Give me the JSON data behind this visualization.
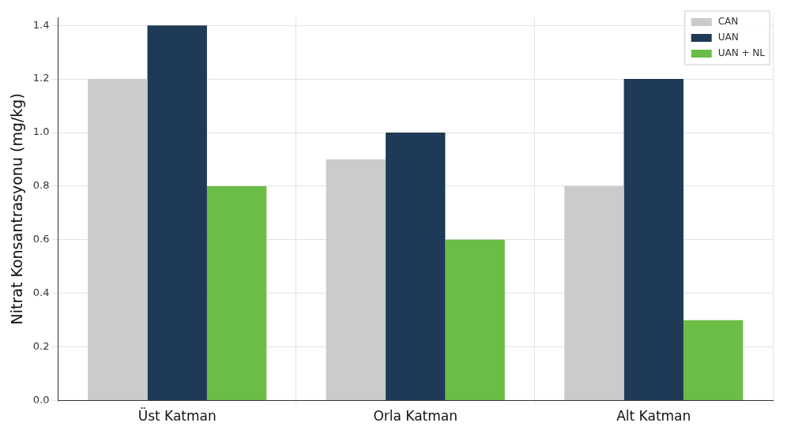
{
  "chart_data": {
    "type": "bar",
    "ylabel": "Nitrat Konsantrasyonu (mg/kg)",
    "categories": [
      "Üst Katman",
      "Orla Katman",
      "Alt Katman"
    ],
    "series": [
      {
        "name": "CAN",
        "color": "#cbcbcb",
        "values": [
          1.2,
          0.9,
          0.8
        ]
      },
      {
        "name": "UAN",
        "color": "#1f3a56",
        "values": [
          1.4,
          1.0,
          1.2
        ]
      },
      {
        "name": "UAN + NL",
        "color": "#6cbd47",
        "values": [
          0.8,
          0.6,
          0.3
        ]
      }
    ],
    "ylim": [
      0,
      1.43
    ],
    "yticks": [
      {
        "value": 0,
        "label": "0.0"
      },
      {
        "value": 0.2,
        "label": "0.2"
      },
      {
        "value": 0.4,
        "label": "0.4"
      },
      {
        "value": 0.6,
        "label": "0.6"
      },
      {
        "value": 0.8,
        "label": "0.8"
      },
      {
        "value": 1.0,
        "label": "1.0"
      },
      {
        "value": 1.2,
        "label": "1.2"
      },
      {
        "value": 1.4,
        "label": "1.4"
      }
    ],
    "grid": true,
    "legend": "top right"
  }
}
